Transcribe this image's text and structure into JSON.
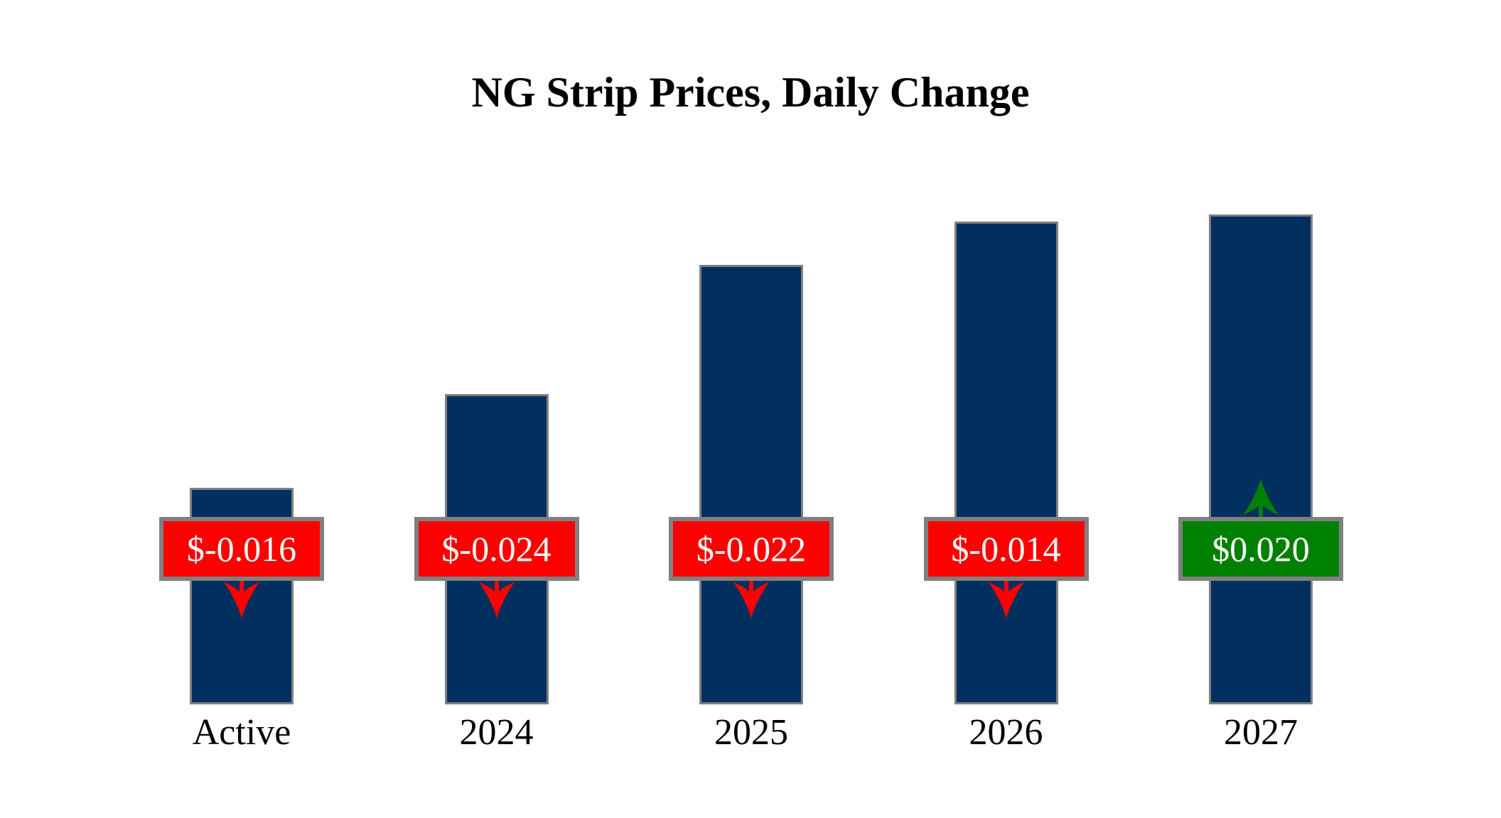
{
  "title": "NG Strip Prices, Daily Change",
  "chart_data": {
    "type": "bar",
    "title": "NG Strip Prices, Daily Change",
    "categories": [
      "Active",
      "2024",
      "2025",
      "2026",
      "2027"
    ],
    "series": [
      {
        "name": "strip_price",
        "values": [
          1.683,
          2.409,
          3.413,
          3.751,
          3.808
        ],
        "labels": [
          "$1.683",
          "$2.409",
          "$3.413",
          "$3.751",
          "$3.808"
        ]
      },
      {
        "name": "daily_change",
        "values": [
          -0.016,
          -0.024,
          -0.022,
          -0.014,
          0.02
        ],
        "labels": [
          "$-0.016",
          "$-0.024",
          "$-0.022",
          "$-0.014",
          "$0.020"
        ],
        "directions": [
          "down",
          "down",
          "down",
          "down",
          "up"
        ]
      }
    ],
    "ylim": [
      0,
      4.35
    ],
    "xlabel": "",
    "ylabel": "",
    "axes": "hidden",
    "gridlines": false,
    "legend": "none"
  },
  "colors": {
    "background": "#FFFFFF",
    "bar_fill": "#02305E",
    "bar_border": "#808080",
    "badge_negative": "#FF0000",
    "badge_positive": "#008000",
    "badge_border": "#808080",
    "badge_text": "#FFFFFF",
    "label_text": "#000000",
    "arrow_negative": "#FF0000",
    "arrow_positive": "#008000"
  }
}
